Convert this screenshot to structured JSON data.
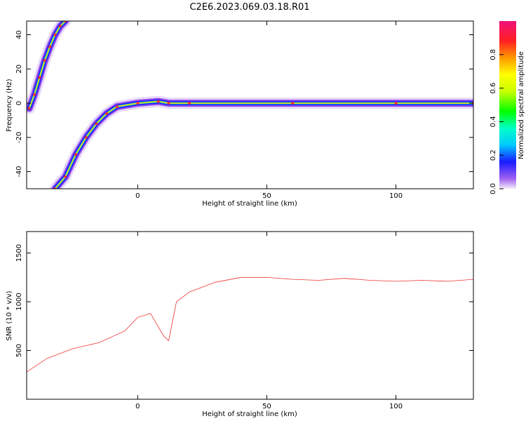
{
  "title": "C2E6.2023.069.03.18.R01",
  "chart_data": [
    {
      "type": "heatmap",
      "xlabel": "Height of straight line (km)",
      "ylabel": "Frequency (Hz)",
      "xlim": [
        -43,
        130
      ],
      "ylim": [
        -50,
        48
      ],
      "xticks": [
        "0",
        "50",
        "100"
      ],
      "yticks": [
        "40",
        "20",
        "0",
        "-20",
        "-40"
      ],
      "colorbar": {
        "label": "Normalized spectral amplitude",
        "range": [
          0,
          1
        ],
        "ticks": [
          "0.0",
          "0.2",
          "0.4",
          "0.6",
          "0.8"
        ]
      },
      "features": [
        {
          "name": "",
          "points": [
            [
              -42,
              -3
            ],
            [
              -40,
              5
            ],
            [
              -38,
              15
            ],
            [
              -36,
              25
            ],
            [
              -34,
              33
            ],
            [
              -32,
              40
            ],
            [
              -30,
              45
            ],
            [
              -28,
              48
            ]
          ]
        },
        {
          "name": "",
          "points": [
            [
              -32,
              -50
            ],
            [
              -28,
              -43
            ],
            [
              -24,
              -30
            ],
            [
              -20,
              -20
            ],
            [
              -16,
              -12
            ],
            [
              -12,
              -6
            ],
            [
              -8,
              -2
            ],
            [
              0,
              0
            ],
            [
              8,
              1
            ],
            [
              12,
              0
            ],
            [
              20,
              0
            ],
            [
              60,
              0
            ],
            [
              100,
              0
            ],
            [
              130,
              0
            ]
          ]
        }
      ]
    },
    {
      "type": "line",
      "xlabel": "Height of straight line (km)",
      "ylabel": "SNR (10 * v/v)",
      "xlim": [
        -43,
        130
      ],
      "ylim": [
        0,
        1720
      ],
      "xticks": [
        "0",
        "50",
        "100"
      ],
      "yticks": [
        "1500",
        "1000",
        "500"
      ],
      "color": "#ee3333",
      "series": [
        {
          "name": "",
          "x": [
            -43,
            -35,
            -25,
            -15,
            -5,
            0,
            5,
            10,
            12,
            15,
            20,
            25,
            30,
            40,
            50,
            60,
            70,
            80,
            90,
            100,
            110,
            120,
            130
          ],
          "y": [
            280,
            420,
            520,
            580,
            700,
            840,
            880,
            650,
            600,
            1000,
            1100,
            1150,
            1200,
            1250,
            1250,
            1230,
            1220,
            1240,
            1220,
            1210,
            1220,
            1210,
            1230
          ]
        }
      ]
    }
  ]
}
